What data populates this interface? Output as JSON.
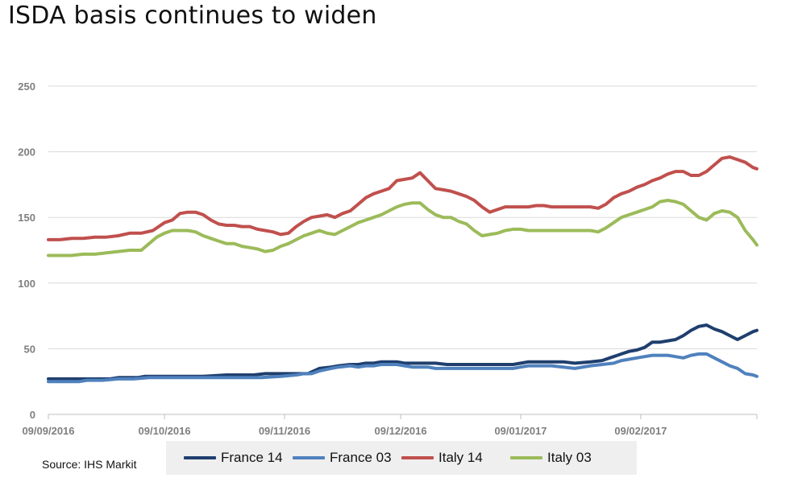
{
  "title": "ISDA basis continues to widen",
  "source": "Source: IHS Markit",
  "chart_data": {
    "type": "line",
    "title": "ISDA basis continues to widen",
    "xlabel": "",
    "ylabel": "",
    "ylim": [
      0,
      250
    ],
    "yticks": [
      0,
      50,
      100,
      150,
      200,
      250
    ],
    "xlim": [
      0,
      183
    ],
    "xticks": [
      {
        "x": 0,
        "label": "09/09/2016"
      },
      {
        "x": 30,
        "label": "09/10/2016"
      },
      {
        "x": 61,
        "label": "09/11/2016"
      },
      {
        "x": 91,
        "label": "09/12/2016"
      },
      {
        "x": 122,
        "label": "09/01/2017"
      },
      {
        "x": 153,
        "label": "09/02/2017"
      }
    ],
    "grid": true,
    "legend": "bottom",
    "series": [
      {
        "name": "France 14",
        "color": "#1f3f6e",
        "points": [
          [
            0,
            27
          ],
          [
            6,
            27
          ],
          [
            8,
            27
          ],
          [
            10,
            27
          ],
          [
            12,
            27
          ],
          [
            16,
            27
          ],
          [
            18,
            28
          ],
          [
            20,
            28
          ],
          [
            23,
            28
          ],
          [
            25,
            29
          ],
          [
            30,
            29
          ],
          [
            35,
            29
          ],
          [
            40,
            29
          ],
          [
            46,
            30
          ],
          [
            50,
            30
          ],
          [
            53,
            30
          ],
          [
            56,
            31
          ],
          [
            61,
            31
          ],
          [
            64,
            31
          ],
          [
            67,
            31
          ],
          [
            70,
            35
          ],
          [
            73,
            36
          ],
          [
            75,
            37
          ],
          [
            78,
            38
          ],
          [
            80,
            38
          ],
          [
            82,
            39
          ],
          [
            84,
            39
          ],
          [
            86,
            40
          ],
          [
            88,
            40
          ],
          [
            90,
            40
          ],
          [
            92,
            39
          ],
          [
            94,
            39
          ],
          [
            96,
            39
          ],
          [
            98,
            39
          ],
          [
            100,
            39
          ],
          [
            103,
            38
          ],
          [
            106,
            38
          ],
          [
            109,
            38
          ],
          [
            112,
            38
          ],
          [
            116,
            38
          ],
          [
            120,
            38
          ],
          [
            122,
            39
          ],
          [
            124,
            40
          ],
          [
            127,
            40
          ],
          [
            130,
            40
          ],
          [
            133,
            40
          ],
          [
            136,
            39
          ],
          [
            140,
            40
          ],
          [
            143,
            41
          ],
          [
            146,
            44
          ],
          [
            148,
            46
          ],
          [
            150,
            48
          ],
          [
            152,
            49
          ],
          [
            154,
            51
          ],
          [
            156,
            55
          ],
          [
            158,
            55
          ],
          [
            160,
            56
          ],
          [
            162,
            57
          ],
          [
            164,
            60
          ],
          [
            166,
            64
          ],
          [
            168,
            67
          ],
          [
            170,
            68
          ],
          [
            172,
            65
          ],
          [
            174,
            63
          ],
          [
            176,
            60
          ],
          [
            178,
            57
          ],
          [
            180,
            60
          ],
          [
            182,
            63
          ],
          [
            183,
            64
          ]
        ]
      },
      {
        "name": "France 03",
        "color": "#4f81bd",
        "points": [
          [
            0,
            25
          ],
          [
            5,
            25
          ],
          [
            8,
            25
          ],
          [
            10,
            26
          ],
          [
            14,
            26
          ],
          [
            18,
            27
          ],
          [
            22,
            27
          ],
          [
            26,
            28
          ],
          [
            30,
            28
          ],
          [
            35,
            28
          ],
          [
            40,
            28
          ],
          [
            46,
            28
          ],
          [
            50,
            28
          ],
          [
            55,
            28
          ],
          [
            60,
            29
          ],
          [
            64,
            30
          ],
          [
            66,
            31
          ],
          [
            68,
            31
          ],
          [
            70,
            33
          ],
          [
            73,
            35
          ],
          [
            75,
            36
          ],
          [
            78,
            37
          ],
          [
            80,
            36
          ],
          [
            82,
            37
          ],
          [
            84,
            37
          ],
          [
            86,
            38
          ],
          [
            88,
            38
          ],
          [
            90,
            38
          ],
          [
            92,
            37
          ],
          [
            94,
            36
          ],
          [
            96,
            36
          ],
          [
            98,
            36
          ],
          [
            100,
            35
          ],
          [
            103,
            35
          ],
          [
            106,
            35
          ],
          [
            109,
            35
          ],
          [
            112,
            35
          ],
          [
            116,
            35
          ],
          [
            120,
            35
          ],
          [
            122,
            36
          ],
          [
            124,
            37
          ],
          [
            127,
            37
          ],
          [
            130,
            37
          ],
          [
            133,
            36
          ],
          [
            136,
            35
          ],
          [
            140,
            37
          ],
          [
            143,
            38
          ],
          [
            146,
            39
          ],
          [
            148,
            41
          ],
          [
            150,
            42
          ],
          [
            152,
            43
          ],
          [
            154,
            44
          ],
          [
            156,
            45
          ],
          [
            158,
            45
          ],
          [
            160,
            45
          ],
          [
            162,
            44
          ],
          [
            164,
            43
          ],
          [
            166,
            45
          ],
          [
            168,
            46
          ],
          [
            170,
            46
          ],
          [
            172,
            43
          ],
          [
            174,
            40
          ],
          [
            176,
            37
          ],
          [
            178,
            35
          ],
          [
            180,
            31
          ],
          [
            182,
            30
          ],
          [
            183,
            29
          ]
        ]
      },
      {
        "name": "Italy 14",
        "color": "#c0504d",
        "points": [
          [
            0,
            133
          ],
          [
            3,
            133
          ],
          [
            6,
            134
          ],
          [
            9,
            134
          ],
          [
            12,
            135
          ],
          [
            15,
            135
          ],
          [
            18,
            136
          ],
          [
            21,
            138
          ],
          [
            24,
            138
          ],
          [
            27,
            140
          ],
          [
            30,
            146
          ],
          [
            32,
            148
          ],
          [
            34,
            153
          ],
          [
            36,
            154
          ],
          [
            38,
            154
          ],
          [
            40,
            152
          ],
          [
            42,
            148
          ],
          [
            44,
            145
          ],
          [
            46,
            144
          ],
          [
            48,
            144
          ],
          [
            50,
            143
          ],
          [
            52,
            143
          ],
          [
            54,
            141
          ],
          [
            56,
            140
          ],
          [
            58,
            139
          ],
          [
            60,
            137
          ],
          [
            62,
            138
          ],
          [
            64,
            143
          ],
          [
            66,
            147
          ],
          [
            68,
            150
          ],
          [
            70,
            151
          ],
          [
            72,
            152
          ],
          [
            74,
            150
          ],
          [
            76,
            153
          ],
          [
            78,
            155
          ],
          [
            80,
            160
          ],
          [
            82,
            165
          ],
          [
            84,
            168
          ],
          [
            86,
            170
          ],
          [
            88,
            172
          ],
          [
            90,
            178
          ],
          [
            92,
            179
          ],
          [
            94,
            180
          ],
          [
            96,
            184
          ],
          [
            98,
            178
          ],
          [
            100,
            172
          ],
          [
            102,
            171
          ],
          [
            104,
            170
          ],
          [
            106,
            168
          ],
          [
            108,
            166
          ],
          [
            110,
            163
          ],
          [
            112,
            158
          ],
          [
            114,
            154
          ],
          [
            116,
            156
          ],
          [
            118,
            158
          ],
          [
            120,
            158
          ],
          [
            122,
            158
          ],
          [
            124,
            158
          ],
          [
            126,
            159
          ],
          [
            128,
            159
          ],
          [
            130,
            158
          ],
          [
            132,
            158
          ],
          [
            134,
            158
          ],
          [
            136,
            158
          ],
          [
            138,
            158
          ],
          [
            140,
            158
          ],
          [
            142,
            157
          ],
          [
            144,
            160
          ],
          [
            146,
            165
          ],
          [
            148,
            168
          ],
          [
            150,
            170
          ],
          [
            152,
            173
          ],
          [
            154,
            175
          ],
          [
            156,
            178
          ],
          [
            158,
            180
          ],
          [
            160,
            183
          ],
          [
            162,
            185
          ],
          [
            164,
            185
          ],
          [
            166,
            182
          ],
          [
            168,
            182
          ],
          [
            170,
            185
          ],
          [
            172,
            190
          ],
          [
            174,
            195
          ],
          [
            176,
            196
          ],
          [
            178,
            194
          ],
          [
            180,
            192
          ],
          [
            182,
            188
          ],
          [
            183,
            187
          ]
        ]
      },
      {
        "name": "Italy 03",
        "color": "#9bbb59",
        "points": [
          [
            0,
            121
          ],
          [
            3,
            121
          ],
          [
            6,
            121
          ],
          [
            9,
            122
          ],
          [
            12,
            122
          ],
          [
            15,
            123
          ],
          [
            18,
            124
          ],
          [
            21,
            125
          ],
          [
            24,
            125
          ],
          [
            26,
            130
          ],
          [
            28,
            135
          ],
          [
            30,
            138
          ],
          [
            32,
            140
          ],
          [
            34,
            140
          ],
          [
            36,
            140
          ],
          [
            38,
            139
          ],
          [
            40,
            136
          ],
          [
            42,
            134
          ],
          [
            44,
            132
          ],
          [
            46,
            130
          ],
          [
            48,
            130
          ],
          [
            50,
            128
          ],
          [
            52,
            127
          ],
          [
            54,
            126
          ],
          [
            56,
            124
          ],
          [
            58,
            125
          ],
          [
            60,
            128
          ],
          [
            62,
            130
          ],
          [
            64,
            133
          ],
          [
            66,
            136
          ],
          [
            68,
            138
          ],
          [
            70,
            140
          ],
          [
            72,
            138
          ],
          [
            74,
            137
          ],
          [
            76,
            140
          ],
          [
            78,
            143
          ],
          [
            80,
            146
          ],
          [
            82,
            148
          ],
          [
            84,
            150
          ],
          [
            86,
            152
          ],
          [
            88,
            155
          ],
          [
            90,
            158
          ],
          [
            92,
            160
          ],
          [
            94,
            161
          ],
          [
            96,
            161
          ],
          [
            98,
            156
          ],
          [
            100,
            152
          ],
          [
            102,
            150
          ],
          [
            104,
            150
          ],
          [
            106,
            147
          ],
          [
            108,
            145
          ],
          [
            110,
            140
          ],
          [
            112,
            136
          ],
          [
            114,
            137
          ],
          [
            116,
            138
          ],
          [
            118,
            140
          ],
          [
            120,
            141
          ],
          [
            122,
            141
          ],
          [
            124,
            140
          ],
          [
            126,
            140
          ],
          [
            128,
            140
          ],
          [
            130,
            140
          ],
          [
            132,
            140
          ],
          [
            134,
            140
          ],
          [
            136,
            140
          ],
          [
            138,
            140
          ],
          [
            140,
            140
          ],
          [
            142,
            139
          ],
          [
            144,
            142
          ],
          [
            146,
            146
          ],
          [
            148,
            150
          ],
          [
            150,
            152
          ],
          [
            152,
            154
          ],
          [
            154,
            156
          ],
          [
            156,
            158
          ],
          [
            158,
            162
          ],
          [
            160,
            163
          ],
          [
            162,
            162
          ],
          [
            164,
            160
          ],
          [
            166,
            155
          ],
          [
            168,
            150
          ],
          [
            170,
            148
          ],
          [
            172,
            153
          ],
          [
            174,
            155
          ],
          [
            176,
            154
          ],
          [
            178,
            150
          ],
          [
            180,
            140
          ],
          [
            182,
            133
          ],
          [
            183,
            129
          ]
        ]
      }
    ]
  }
}
